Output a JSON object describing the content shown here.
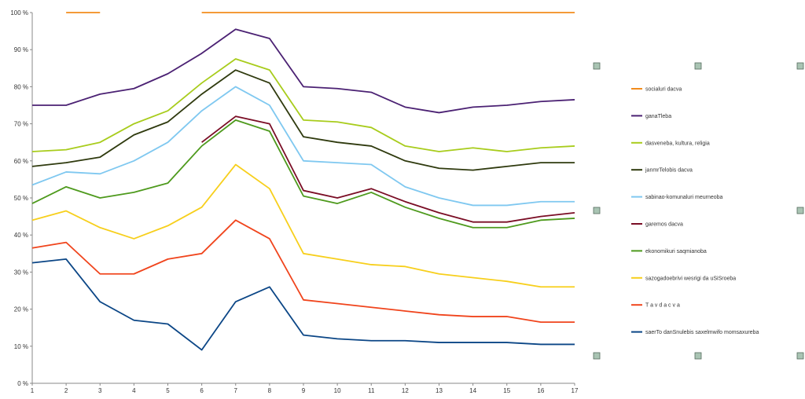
{
  "chart_data": {
    "type": "line",
    "title": "",
    "xlabel": "",
    "ylabel": "",
    "x": [
      1,
      2,
      3,
      4,
      5,
      6,
      7,
      8,
      9,
      10,
      11,
      12,
      13,
      14,
      15,
      16,
      17
    ],
    "ylim": [
      0,
      100
    ],
    "yticks": [
      "0 %",
      "10 %",
      "20 %",
      "30 %",
      "40 %",
      "50 %",
      "60 %",
      "70 %",
      "80 %",
      "90 %",
      "100 %"
    ],
    "ytick_values": [
      0,
      10,
      20,
      30,
      40,
      50,
      60,
      70,
      80,
      90,
      100
    ],
    "grid": false,
    "legend_position": "right",
    "series": [
      {
        "name": "socialuri dacva",
        "color": "#f28c1c",
        "values": [
          null,
          100,
          100,
          null,
          null,
          100,
          100,
          100,
          100,
          100,
          100,
          100,
          100,
          100,
          100,
          100,
          100
        ]
      },
      {
        "name": "ganaTleba",
        "color": "#4b2173",
        "values": [
          75,
          75,
          78,
          79.5,
          83.5,
          89,
          95.5,
          93,
          80,
          79.5,
          78.5,
          74.5,
          73,
          74.5,
          75,
          76,
          76.5
        ]
      },
      {
        "name": "dasveneba, kultura, religia",
        "color": "#a8cc1c",
        "values": [
          62.5,
          63,
          65,
          70,
          73.5,
          81,
          87.5,
          84.5,
          71,
          70.5,
          69,
          64,
          62.5,
          63.5,
          62.5,
          63.5,
          64
        ]
      },
      {
        "name": "janmrTelobis dacva",
        "color": "#2f3a0e",
        "values": [
          58.5,
          59.5,
          61,
          67,
          70.5,
          78,
          84.5,
          81,
          66.5,
          65,
          64,
          60,
          58,
          57.5,
          58.5,
          59.5,
          59.5
        ]
      },
      {
        "name": "sabinao-komunaluri meurneoba",
        "color": "#7fc8f0",
        "values": [
          53.5,
          57,
          56.5,
          60,
          65,
          73.5,
          80,
          75,
          60,
          59.5,
          59,
          53,
          50,
          48,
          48,
          49,
          49
        ]
      },
      {
        "name": "garemos dacva",
        "color": "#7a0d25",
        "values": [
          null,
          null,
          null,
          null,
          null,
          65,
          72,
          70,
          52,
          50,
          52.5,
          49,
          46,
          43.5,
          43.5,
          45,
          46
        ]
      },
      {
        "name": "ekonomikuri saqmianoba",
        "color": "#4e9a1d",
        "values": [
          48.5,
          53,
          50,
          51.5,
          54,
          64,
          71,
          68,
          50.5,
          48.5,
          51.5,
          47.5,
          44.5,
          42,
          42,
          44,
          44.5
        ]
      },
      {
        "name": "sazogadoebrivi wesrigi da uSiSroeba",
        "color": "#f7cf1c",
        "values": [
          44,
          46.5,
          42,
          39,
          42.5,
          47.5,
          59,
          52.5,
          35,
          33.5,
          32,
          31.5,
          29.5,
          28.5,
          27.5,
          26,
          26
        ]
      },
      {
        "name": "T a v d a c v a",
        "color": "#f0441c",
        "values": [
          36.5,
          38,
          29.5,
          29.5,
          33.5,
          35,
          44,
          39,
          22.5,
          21.5,
          20.5,
          19.5,
          18.5,
          18,
          18,
          16.5,
          16.5
        ]
      },
      {
        "name": "saerTo danSnulebis saxelmwifo   momsaxureba",
        "color": "#0b4686",
        "values": [
          32.5,
          33.5,
          22,
          17,
          16,
          9,
          22,
          26,
          13,
          12,
          11.5,
          11.5,
          11,
          11,
          11,
          10.5,
          10.5
        ]
      }
    ]
  }
}
